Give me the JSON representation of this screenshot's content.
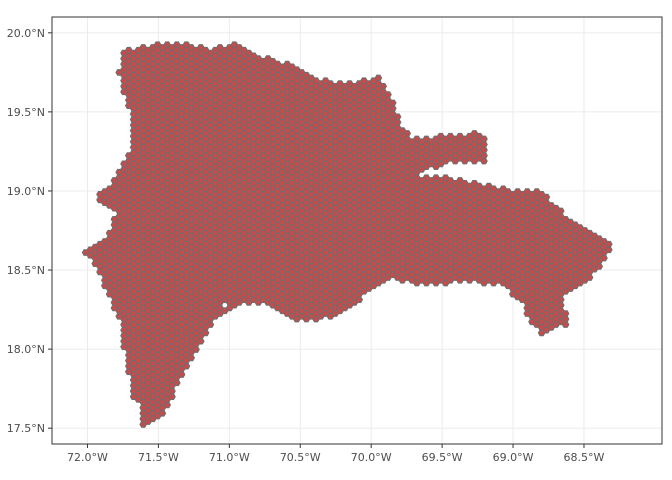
{
  "map": {
    "kind": "hexagonal grid over Dominican Republic outline",
    "fill_color": "#c84a4a",
    "cell_stroke_color": "#6e6e6e",
    "grid_color": "#ebebeb",
    "background": "#ffffff",
    "lon_range": [
      -72.25,
      -67.95
    ],
    "lat_range": [
      17.4,
      20.1
    ],
    "x_ticks": [
      {
        "value": -72.0,
        "label": "72.0°W"
      },
      {
        "value": -71.5,
        "label": "71.5°W"
      },
      {
        "value": -71.0,
        "label": "71.0°W"
      },
      {
        "value": -70.5,
        "label": "70.5°W"
      },
      {
        "value": -70.0,
        "label": "70.0°W"
      },
      {
        "value": -69.5,
        "label": "69.5°W"
      },
      {
        "value": -69.0,
        "label": "69.0°W"
      },
      {
        "value": -68.5,
        "label": "68.5°W"
      }
    ],
    "y_ticks": [
      {
        "value": 20.0,
        "label": "20.0°N"
      },
      {
        "value": 19.5,
        "label": "19.5°N"
      },
      {
        "value": 19.0,
        "label": "19.0°N"
      },
      {
        "value": 18.5,
        "label": "18.5°N"
      },
      {
        "value": 18.0,
        "label": "18.0°N"
      },
      {
        "value": 17.5,
        "label": "17.5°N"
      }
    ],
    "outline_lonlat": [
      [
        -71.75,
        19.88
      ],
      [
        -71.55,
        19.93
      ],
      [
        -71.3,
        19.93
      ],
      [
        -71.15,
        19.9
      ],
      [
        -70.95,
        19.93
      ],
      [
        -70.75,
        19.85
      ],
      [
        -70.55,
        19.8
      ],
      [
        -70.4,
        19.72
      ],
      [
        -70.25,
        19.68
      ],
      [
        -70.05,
        19.7
      ],
      [
        -69.95,
        19.72
      ],
      [
        -69.9,
        19.65
      ],
      [
        -69.82,
        19.52
      ],
      [
        -69.78,
        19.4
      ],
      [
        -69.7,
        19.33
      ],
      [
        -69.5,
        19.35
      ],
      [
        -69.25,
        19.37
      ],
      [
        -69.17,
        19.3
      ],
      [
        -69.2,
        19.18
      ],
      [
        -69.4,
        19.18
      ],
      [
        -69.6,
        19.14
      ],
      [
        -69.7,
        19.1
      ],
      [
        -69.4,
        19.08
      ],
      [
        -69.15,
        19.03
      ],
      [
        -68.95,
        19.0
      ],
      [
        -68.8,
        19.0
      ],
      [
        -68.7,
        18.9
      ],
      [
        -68.55,
        18.8
      ],
      [
        -68.4,
        18.72
      ],
      [
        -68.3,
        18.65
      ],
      [
        -68.35,
        18.55
      ],
      [
        -68.45,
        18.45
      ],
      [
        -68.55,
        18.38
      ],
      [
        -68.65,
        18.33
      ],
      [
        -68.62,
        18.22
      ],
      [
        -68.6,
        18.12
      ],
      [
        -68.7,
        18.15
      ],
      [
        -68.8,
        18.1
      ],
      [
        -68.9,
        18.2
      ],
      [
        -68.95,
        18.32
      ],
      [
        -69.1,
        18.4
      ],
      [
        -69.3,
        18.43
      ],
      [
        -69.6,
        18.4
      ],
      [
        -69.75,
        18.42
      ],
      [
        -69.85,
        18.45
      ],
      [
        -70.0,
        18.38
      ],
      [
        -70.1,
        18.3
      ],
      [
        -70.2,
        18.22
      ],
      [
        -70.4,
        18.18
      ],
      [
        -70.55,
        18.18
      ],
      [
        -70.65,
        18.22
      ],
      [
        -70.75,
        18.28
      ],
      [
        -70.9,
        18.3
      ],
      [
        -71.0,
        18.25
      ],
      [
        -71.1,
        18.2
      ],
      [
        -71.15,
        18.12
      ],
      [
        -71.25,
        17.95
      ],
      [
        -71.35,
        17.8
      ],
      [
        -71.4,
        17.7
      ],
      [
        -71.45,
        17.6
      ],
      [
        -71.55,
        17.52
      ],
      [
        -71.63,
        17.48
      ],
      [
        -71.62,
        17.62
      ],
      [
        -71.68,
        17.7
      ],
      [
        -71.72,
        17.9
      ],
      [
        -71.75,
        18.05
      ],
      [
        -71.78,
        18.2
      ],
      [
        -71.88,
        18.38
      ],
      [
        -71.95,
        18.55
      ],
      [
        -72.05,
        18.62
      ],
      [
        -71.95,
        18.66
      ],
      [
        -71.85,
        18.72
      ],
      [
        -71.8,
        18.85
      ],
      [
        -71.95,
        18.95
      ],
      [
        -71.82,
        19.05
      ],
      [
        -71.75,
        19.18
      ],
      [
        -71.68,
        19.3
      ],
      [
        -71.68,
        19.45
      ],
      [
        -71.75,
        19.62
      ],
      [
        -71.78,
        19.75
      ]
    ],
    "notch_lonlat": [
      [
        -71.05,
        18.32
      ],
      [
        -70.98,
        18.28
      ],
      [
        -71.02,
        18.24
      ],
      [
        -71.08,
        18.27
      ]
    ]
  }
}
